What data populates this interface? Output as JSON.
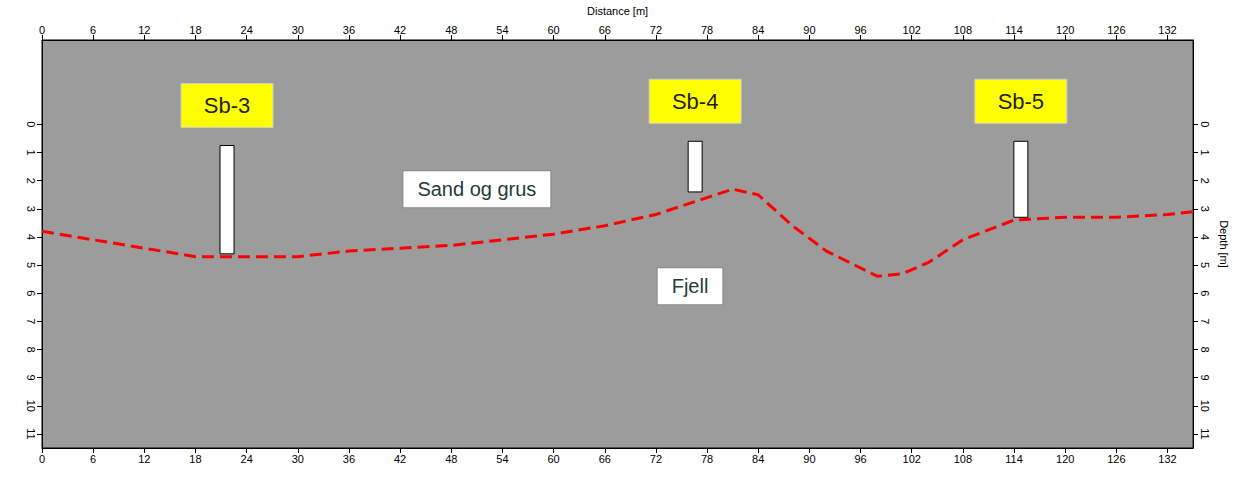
{
  "chart_data": {
    "type": "line",
    "x_label": "Distance [m]",
    "y_label": "Depth [m]",
    "xlim": [
      0,
      135
    ],
    "xticks": [
      0,
      6,
      12,
      18,
      24,
      30,
      36,
      42,
      48,
      54,
      60,
      66,
      72,
      78,
      84,
      90,
      96,
      102,
      108,
      114,
      120,
      126,
      132
    ],
    "ylim": [
      11.5,
      -3
    ],
    "yticks": [
      0,
      1,
      2,
      3,
      4,
      5,
      6,
      7,
      8,
      9,
      10,
      11
    ],
    "x": [
      0,
      6,
      12,
      18,
      24,
      30,
      36,
      42,
      48,
      54,
      60,
      66,
      72,
      78,
      81,
      84,
      88,
      92,
      98,
      101,
      104,
      108,
      114,
      120,
      126,
      132,
      135
    ],
    "series": [
      {
        "color": "#ff0000",
        "line_style": "dashed",
        "values": [
          3.8,
          4.1,
          4.4,
          4.7,
          4.7,
          4.7,
          4.5,
          4.4,
          4.3,
          4.1,
          3.9,
          3.6,
          3.2,
          2.6,
          2.3,
          2.5,
          3.6,
          4.5,
          5.4,
          5.3,
          4.9,
          4.1,
          3.4,
          3.3,
          3.3,
          3.2,
          3.1
        ]
      }
    ],
    "boreholes": [
      {
        "label": "Sb-3",
        "x": 21.7,
        "top": 0.75,
        "bottom": 4.6
      },
      {
        "label": "Sb-4",
        "x": 76.6,
        "top": 0.6,
        "bottom": 2.4
      },
      {
        "label": "Sb-5",
        "x": 114.8,
        "top": 0.6,
        "bottom": 3.3
      }
    ],
    "annotations": [
      {
        "text": "Sand og grus",
        "x": 51,
        "y": 2.3
      },
      {
        "text": "Fjell",
        "x": 76,
        "y": 5.75
      }
    ],
    "grid": false
  }
}
